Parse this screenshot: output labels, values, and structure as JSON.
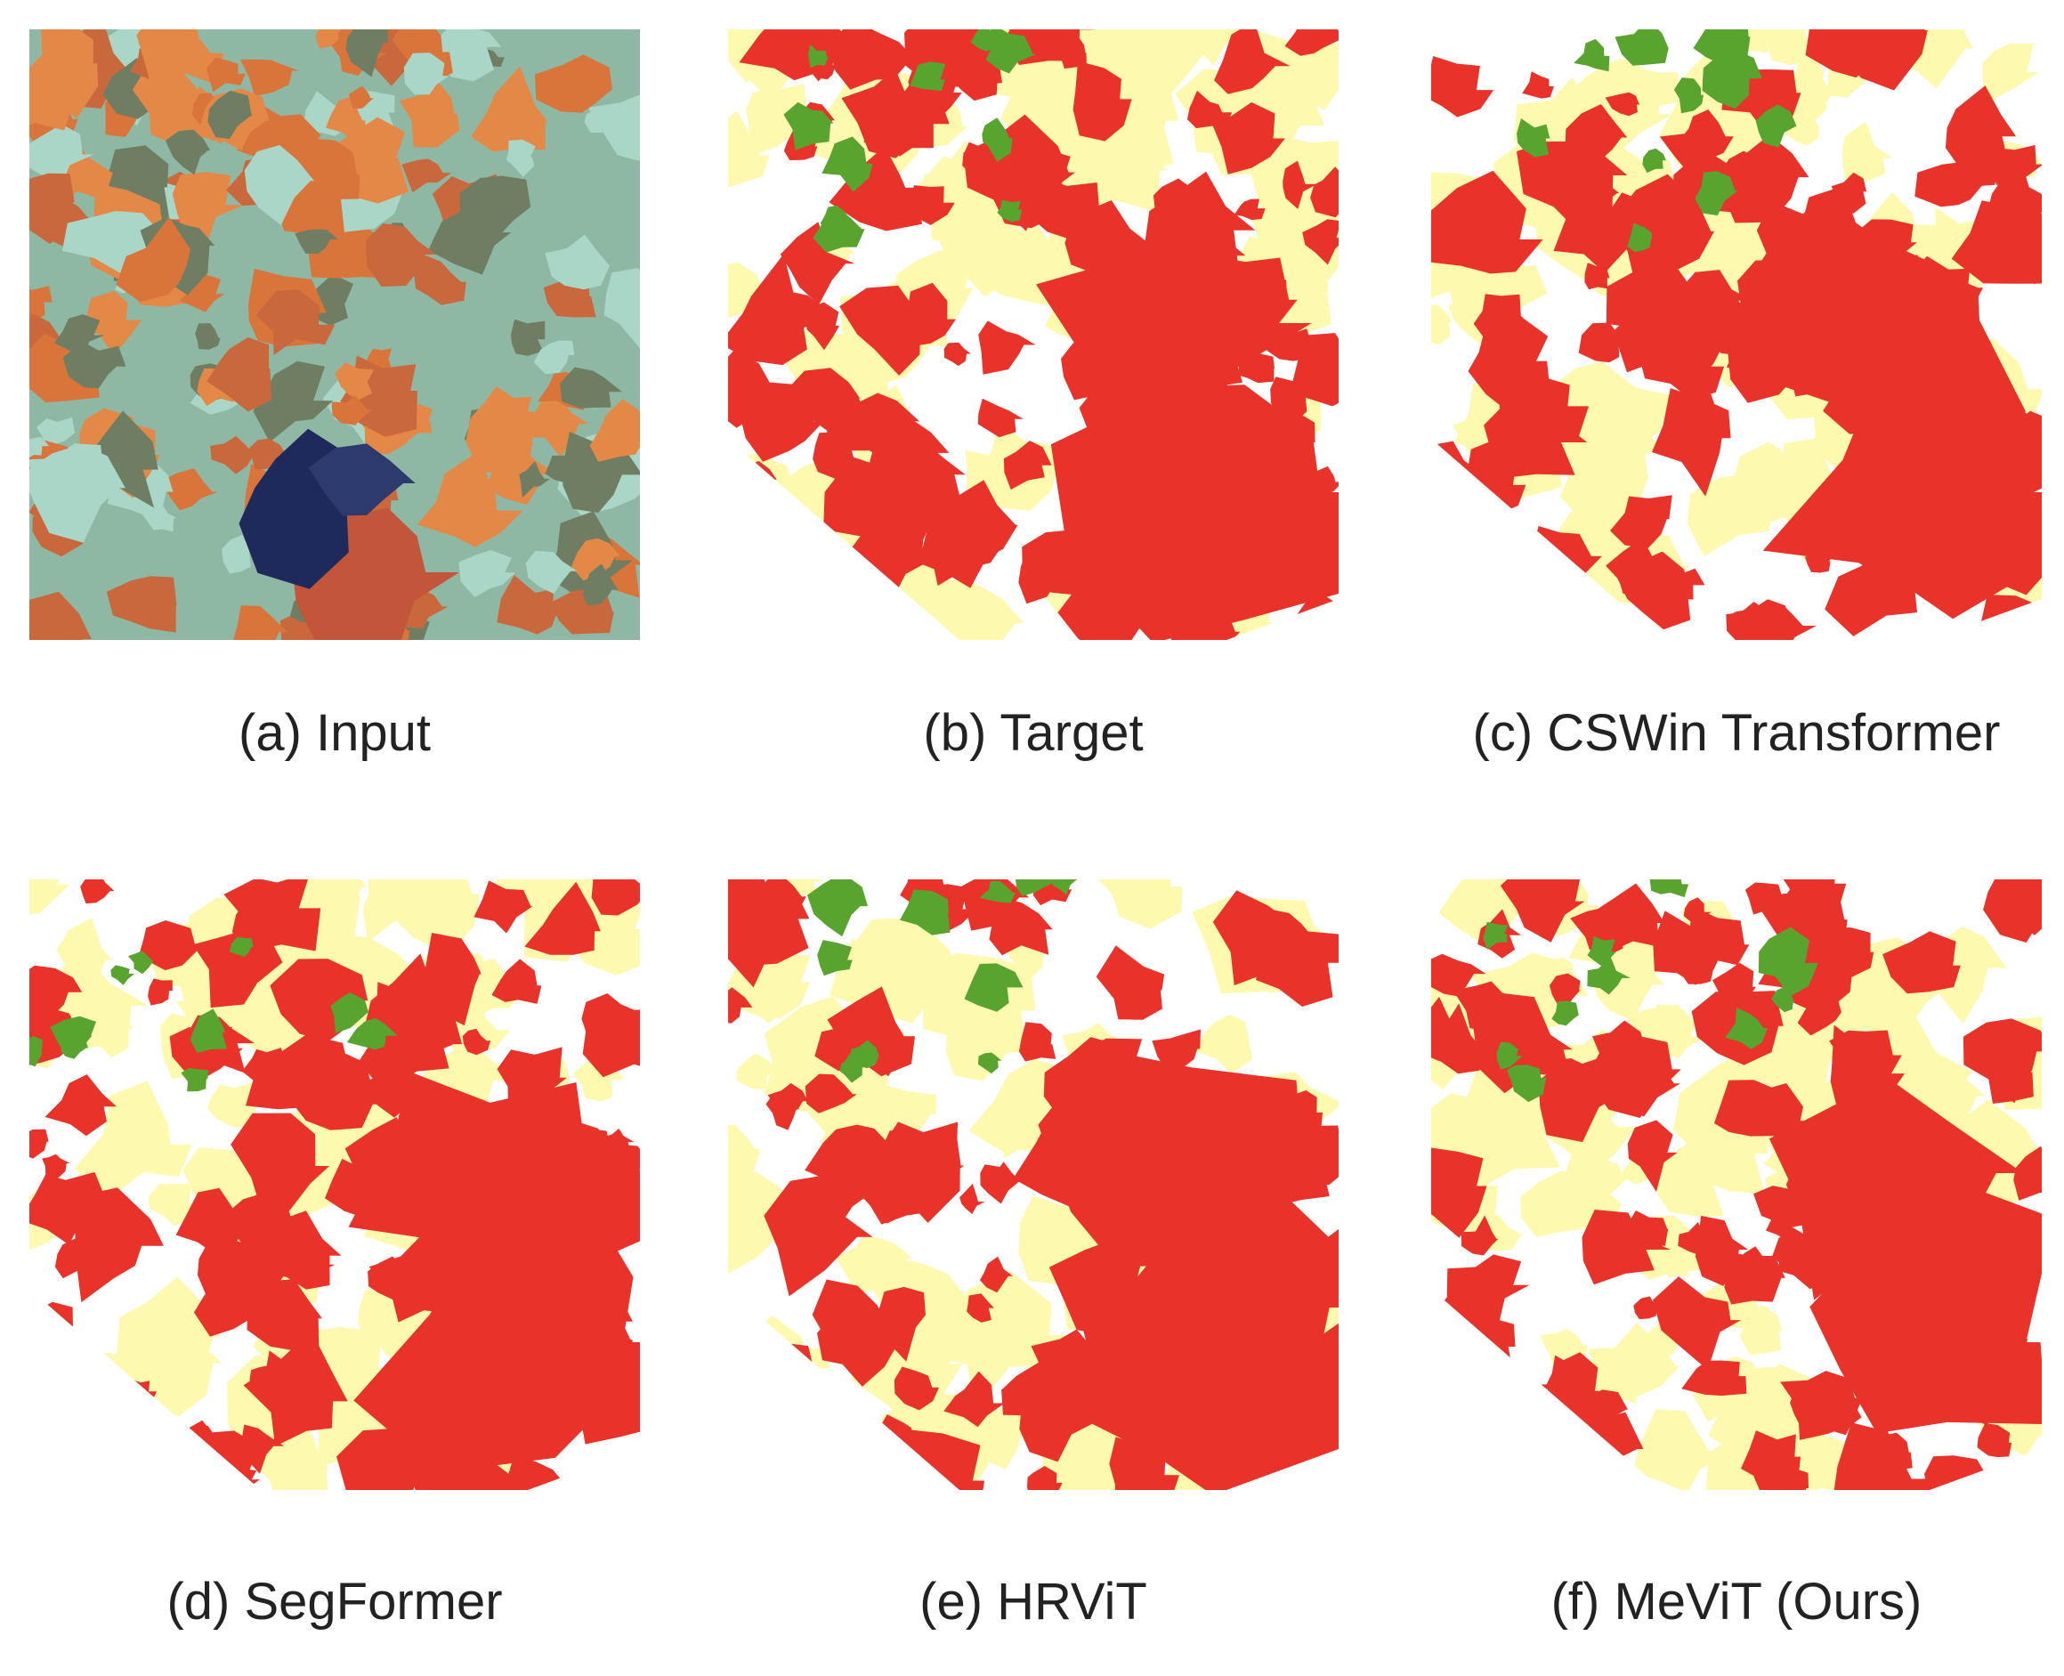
{
  "figure": {
    "panels": [
      {
        "caption": "(a) Input"
      },
      {
        "caption": "(b) Target"
      },
      {
        "caption": "(c) CSWin Transformer"
      },
      {
        "caption": "(d) SegFormer"
      },
      {
        "caption": "(e) HRViT"
      },
      {
        "caption": "(f) MeViT (Ours)"
      }
    ]
  }
}
